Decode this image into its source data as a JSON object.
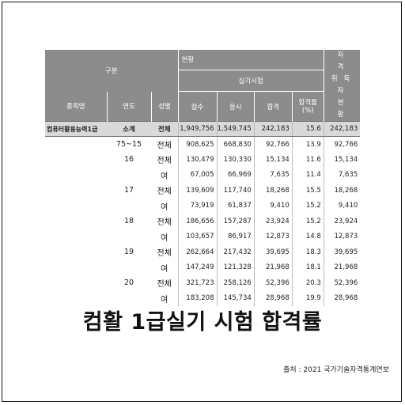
{
  "table": {
    "header": {
      "category": "구분",
      "status": "현황",
      "practical_exam": "실기시험",
      "license_holders": "자 격\n취득자\n현 황",
      "item_name": "종목명",
      "year": "연도",
      "gender": "성별",
      "applied": "접수",
      "taken": "응시",
      "passed": "합격",
      "pass_rate": "합격률\n(%)"
    },
    "summary": {
      "item": "컴퓨터활용능력1급",
      "year": "소계",
      "gender": "전체",
      "applied": "1,949,756",
      "taken": "1,549,745",
      "passed": "242,183",
      "rate": "15.6",
      "holders": "242,183"
    },
    "rows": [
      {
        "year": "75~15",
        "gender": "전체",
        "applied": "908,625",
        "taken": "668,830",
        "passed": "92,766",
        "rate": "13.9",
        "holders": "92,766"
      },
      {
        "year": "16",
        "gender": "전체",
        "applied": "130,479",
        "taken": "130,330",
        "passed": "15,134",
        "rate": "11.6",
        "holders": "15,134"
      },
      {
        "year": "",
        "gender": "여",
        "applied": "67,005",
        "taken": "66,969",
        "passed": "7,635",
        "rate": "11.4",
        "holders": "7,635"
      },
      {
        "year": "17",
        "gender": "전체",
        "applied": "139,609",
        "taken": "117,740",
        "passed": "18,268",
        "rate": "15.5",
        "holders": "18,268"
      },
      {
        "year": "",
        "gender": "여",
        "applied": "73,919",
        "taken": "61,837",
        "passed": "9,410",
        "rate": "15.2",
        "holders": "9,410"
      },
      {
        "year": "18",
        "gender": "전체",
        "applied": "186,656",
        "taken": "157,287",
        "passed": "23,924",
        "rate": "15.2",
        "holders": "23,924"
      },
      {
        "year": "",
        "gender": "여",
        "applied": "103,657",
        "taken": "86,917",
        "passed": "12,873",
        "rate": "14.8",
        "holders": "12,873"
      },
      {
        "year": "19",
        "gender": "전체",
        "applied": "262,664",
        "taken": "217,432",
        "passed": "39,695",
        "rate": "18.3",
        "holders": "39,695"
      },
      {
        "year": "",
        "gender": "여",
        "applied": "147,249",
        "taken": "121,328",
        "passed": "21,968",
        "rate": "18.1",
        "holders": "21,968"
      },
      {
        "year": "20",
        "gender": "전체",
        "applied": "321,723",
        "taken": "258,126",
        "passed": "52,396",
        "rate": "20.3",
        "holders": "52,396"
      },
      {
        "year": "",
        "gender": "여",
        "applied": "183,208",
        "taken": "145,734",
        "passed": "28,968",
        "rate": "19.9",
        "holders": "28,968"
      }
    ]
  },
  "title": "컴활 1급실기 시험 합격률",
  "source": "출처 : 2021 국가기술자격통계연보"
}
